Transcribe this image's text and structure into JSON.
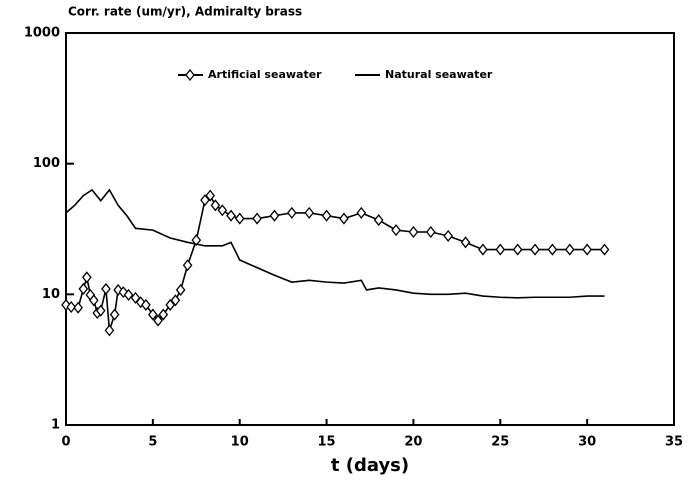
{
  "chart_data": {
    "type": "line",
    "title": "Corr. rate (um/yr), Admiralty brass",
    "x_label": "t (days)",
    "xlim": [
      0,
      35
    ],
    "xticks": [
      0,
      5,
      10,
      15,
      20,
      25,
      30,
      35
    ],
    "ylim": [
      1,
      1000
    ],
    "yticks": [
      1,
      10,
      100,
      1000
    ],
    "log_y": true,
    "grid": false,
    "legend": "top",
    "series": [
      {
        "name": "Artificial seawater",
        "color": "#000000",
        "marker": "diamond",
        "x": [
          0,
          0.3,
          0.7,
          1,
          1.2,
          1.4,
          1.6,
          1.8,
          2,
          2.3,
          2.5,
          2.8,
          3,
          3.3,
          3.6,
          4,
          4.3,
          4.6,
          5,
          5.3,
          5.6,
          6,
          6.3,
          6.6,
          7,
          7.5,
          8,
          8.3,
          8.6,
          9,
          9.5,
          10,
          11,
          12,
          13,
          14,
          15,
          16,
          17,
          18,
          19,
          20,
          21,
          22,
          23,
          24,
          25,
          26,
          27,
          28,
          29,
          30,
          31
        ],
        "values": [
          8.3,
          8,
          7.9,
          11,
          13.5,
          9.9,
          9,
          7.2,
          7.5,
          11,
          5.3,
          7,
          10.8,
          10.4,
          9.9,
          9.4,
          8.7,
          8.3,
          7,
          6.3,
          7,
          8.3,
          9,
          10.8,
          16.7,
          26,
          52.6,
          57,
          48,
          44,
          40,
          38,
          38,
          40,
          42,
          42,
          40,
          38,
          42,
          37,
          31,
          30,
          30,
          28,
          25,
          22,
          22,
          22,
          22,
          22,
          22,
          22,
          22
        ]
      },
      {
        "name": "Natural seawater",
        "color": "#000000",
        "marker": "none",
        "x": [
          0,
          0.5,
          1,
          1.5,
          2,
          2.5,
          3,
          3.5,
          4,
          5,
          6,
          7,
          8,
          9,
          9.5,
          10,
          11,
          12,
          13,
          14,
          15,
          16,
          17,
          17.3,
          18,
          19,
          20,
          21,
          22,
          23,
          24,
          25,
          26,
          27,
          28,
          29,
          30,
          31
        ],
        "values": [
          42,
          48,
          57,
          63,
          52,
          63,
          48,
          40,
          32,
          31,
          27,
          25,
          23.5,
          23.5,
          25,
          18.3,
          16,
          14,
          12.4,
          12.8,
          12.4,
          12.2,
          12.8,
          10.8,
          11.2,
          10.8,
          10.2,
          10,
          10,
          10.2,
          9.7,
          9.5,
          9.4,
          9.5,
          9.5,
          9.5,
          9.7,
          9.7
        ]
      }
    ]
  }
}
